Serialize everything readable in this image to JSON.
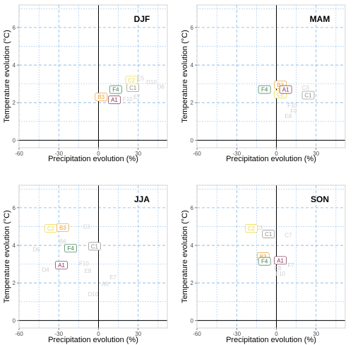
{
  "chart_data": {
    "type": "scatter",
    "xlabel": "Precipitation evolution (%)",
    "ylabel": "Temperature evolution (°C)",
    "xlim": [
      -60,
      52
    ],
    "ylim": [
      -0.4,
      7.2
    ],
    "x_ticks": [
      -60,
      -30,
      0,
      30
    ],
    "y_ticks": [
      0,
      2,
      4,
      6
    ],
    "grid": true,
    "colors": {
      "A1": "#7b2d50",
      "B3": "#e8a030",
      "C2": "#e8d840",
      "C1": "#8a8a8a",
      "F4": "#3a7a4a",
      "faded": "#cfcfcf",
      "grid": "#7fb2e5"
    },
    "panels": [
      {
        "title": "DJF",
        "points": [
          {
            "label": "A1",
            "x": 12,
            "y": 2.15,
            "faded": false
          },
          {
            "label": "B3",
            "x": 2,
            "y": 2.3,
            "faded": false
          },
          {
            "label": "F4",
            "x": 13,
            "y": 2.7,
            "faded": false
          },
          {
            "label": "C1",
            "x": 26,
            "y": 2.8,
            "faded": false
          },
          {
            "label": "C2",
            "x": 25,
            "y": 3.2,
            "faded": false
          },
          {
            "label": "D10",
            "x": 40,
            "y": 3.1,
            "faded": true
          },
          {
            "label": "D6",
            "x": 47,
            "y": 2.85,
            "faded": true
          },
          {
            "label": "E7",
            "x": 29,
            "y": 2.3,
            "faded": true
          },
          {
            "label": "F10",
            "x": 22,
            "y": 2.2,
            "faded": true
          },
          {
            "label": "E5",
            "x": 32,
            "y": 3.3,
            "faded": true
          }
        ]
      },
      {
        "title": "MAM",
        "points": [
          {
            "label": "F4",
            "x": -9,
            "y": 2.7,
            "faded": false
          },
          {
            "label": "B3",
            "x": 3,
            "y": 2.95,
            "faded": false
          },
          {
            "label": "C2",
            "x": 3,
            "y": 2.45,
            "faded": false
          },
          {
            "label": "A1",
            "x": 7,
            "y": 2.7,
            "faded": false
          },
          {
            "label": "C1",
            "x": 24,
            "y": 2.4,
            "faded": false
          },
          {
            "label": "C3",
            "x": 22,
            "y": 2.8,
            "faded": true
          },
          {
            "label": "F10",
            "x": 12,
            "y": 1.85,
            "faded": true
          },
          {
            "label": "E8",
            "x": 9,
            "y": 1.3,
            "faded": true
          },
          {
            "label": "F9",
            "x": 13,
            "y": 1.55,
            "faded": true
          }
        ]
      },
      {
        "title": "JJA",
        "points": [
          {
            "label": "C2",
            "x": -36,
            "y": 4.9,
            "faded": false
          },
          {
            "label": "B3",
            "x": -27,
            "y": 4.95,
            "faded": false
          },
          {
            "label": "F4",
            "x": -21,
            "y": 3.85,
            "faded": false
          },
          {
            "label": "C1",
            "x": -3,
            "y": 3.95,
            "faded": false
          },
          {
            "label": "A1",
            "x": -28,
            "y": 2.95,
            "faded": false
          },
          {
            "label": "C3",
            "x": -9,
            "y": 5.0,
            "faded": true
          },
          {
            "label": "D6",
            "x": -47,
            "y": 3.8,
            "faded": true
          },
          {
            "label": "D4",
            "x": -40,
            "y": 2.7,
            "faded": true
          },
          {
            "label": "F10",
            "x": -11,
            "y": 3.05,
            "faded": true
          },
          {
            "label": "E8",
            "x": -8,
            "y": 2.65,
            "faded": true
          },
          {
            "label": "E7",
            "x": 11,
            "y": 2.3,
            "faded": true
          },
          {
            "label": "A5",
            "x": 5,
            "y": 1.95,
            "faded": true
          },
          {
            "label": "D10",
            "x": -4,
            "y": 1.4,
            "faded": true
          },
          {
            "label": "B6",
            "x": -27,
            "y": 4.2,
            "faded": true
          }
        ]
      },
      {
        "title": "SON",
        "points": [
          {
            "label": "C2",
            "x": -19,
            "y": 4.9,
            "faded": false
          },
          {
            "label": "C1",
            "x": -6,
            "y": 4.6,
            "faded": false
          },
          {
            "label": "B3",
            "x": -10,
            "y": 3.4,
            "faded": false
          },
          {
            "label": "F4",
            "x": -9,
            "y": 3.15,
            "faded": false
          },
          {
            "label": "A1",
            "x": 3,
            "y": 3.2,
            "faded": false
          },
          {
            "label": "C3",
            "x": -13,
            "y": 4.95,
            "faded": true
          },
          {
            "label": "C7",
            "x": 9,
            "y": 4.55,
            "faded": true
          },
          {
            "label": "F10",
            "x": 3,
            "y": 2.5,
            "faded": true
          },
          {
            "label": "F7",
            "x": 11,
            "y": 2.95,
            "faded": true
          },
          {
            "label": "E8",
            "x": 1,
            "y": 2.8,
            "faded": true
          }
        ]
      }
    ]
  }
}
